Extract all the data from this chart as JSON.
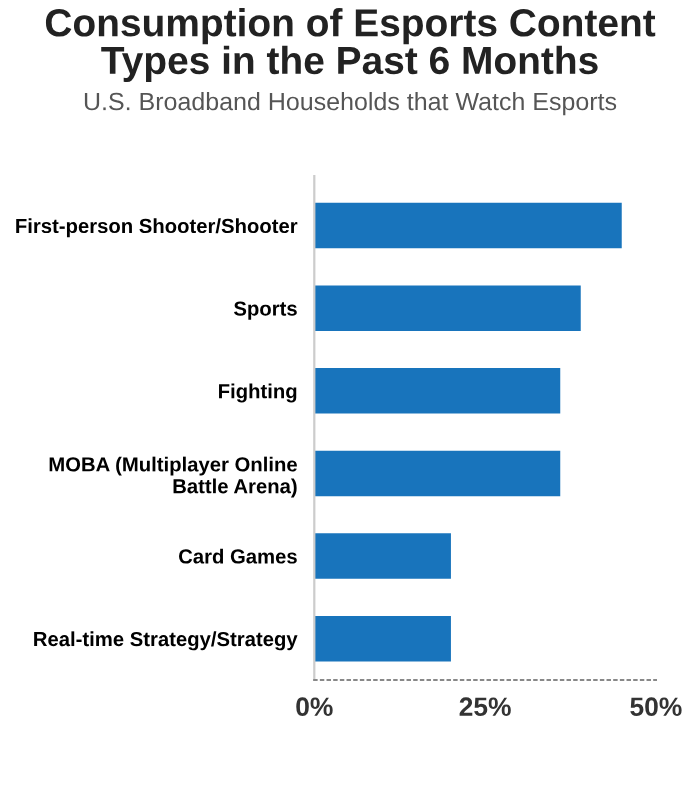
{
  "chart_data": {
    "type": "bar",
    "orientation": "horizontal",
    "title": "Consumption of Esports Content\nTypes in the Past 6 Months",
    "subtitle": "U.S. Broadband Households that Watch Esports",
    "categories": [
      "First-person Shooter/Shooter",
      "Sports",
      "Fighting",
      "MOBA (Multiplayer Online\nBattle Arena)",
      "Card Games",
      "Real-time Strategy/Strategy"
    ],
    "values": [
      45,
      39,
      36,
      36,
      20,
      20
    ],
    "color": "#1874bc",
    "xlim": [
      0,
      50
    ],
    "xticks": [
      {
        "value": 0,
        "label": "0%"
      },
      {
        "value": 25,
        "label": "25%"
      },
      {
        "value": 50,
        "label": "50%"
      }
    ],
    "grid": false,
    "legend": false
  }
}
